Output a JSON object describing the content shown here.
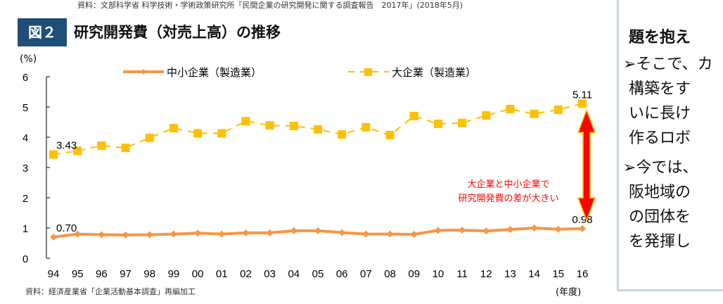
{
  "source_top": "資料：文部科学省 科学技術・学術政策研究所「民間企業の研究開発に関する調査報告　2017年」(2018年5月)",
  "figure_badge": "図２",
  "chart_data": {
    "type": "line",
    "title": "研究開発費（対売上高）の推移",
    "ylabel": "(%)",
    "xlabel": "(年度)",
    "ylim": [
      0,
      6
    ],
    "yticks": [
      "0",
      "1",
      "2",
      "3",
      "4",
      "5",
      "6"
    ],
    "categories": [
      "94",
      "95",
      "96",
      "97",
      "98",
      "99",
      "00",
      "01",
      "02",
      "03",
      "04",
      "05",
      "06",
      "07",
      "08",
      "09",
      "10",
      "11",
      "12",
      "13",
      "14",
      "15",
      "16"
    ],
    "legend_position": "top",
    "grid": false,
    "series": [
      {
        "name": "中小企業（製造業）",
        "color": "#f79646",
        "marker": "diamond",
        "style": "solid",
        "values": [
          0.7,
          0.8,
          0.78,
          0.77,
          0.78,
          0.8,
          0.83,
          0.8,
          0.84,
          0.84,
          0.91,
          0.91,
          0.85,
          0.8,
          0.8,
          0.79,
          0.92,
          0.93,
          0.9,
          0.95,
          1.0,
          0.96,
          0.98
        ],
        "labels": {
          "first": "0.70",
          "last": "0.98"
        }
      },
      {
        "name": "大企業（製造業）",
        "color": "#ffc000",
        "marker": "square",
        "style": "dashed",
        "values": [
          3.43,
          3.55,
          3.72,
          3.65,
          3.98,
          4.3,
          4.13,
          4.13,
          4.53,
          4.39,
          4.37,
          4.26,
          4.09,
          4.33,
          4.07,
          4.7,
          4.44,
          4.47,
          4.72,
          4.93,
          4.77,
          4.91,
          5.11
        ],
        "labels": {
          "first": "3.43",
          "last": "5.11"
        }
      }
    ],
    "annotation": {
      "text_line1": "大企業と中小企業で",
      "text_line2": "研究開発費の差が大きい",
      "color": "#ff0000"
    }
  },
  "source_bottom": "資料：経済産業省「企業活動基本調査」再編加工",
  "side_panel": {
    "lines": [
      "題を抱え",
      "➢そこで、カ",
      "構築をす",
      "いに長け",
      "作るロボ",
      "➢今では、",
      "阪地域の",
      "の団体を",
      "を発揮し"
    ]
  }
}
